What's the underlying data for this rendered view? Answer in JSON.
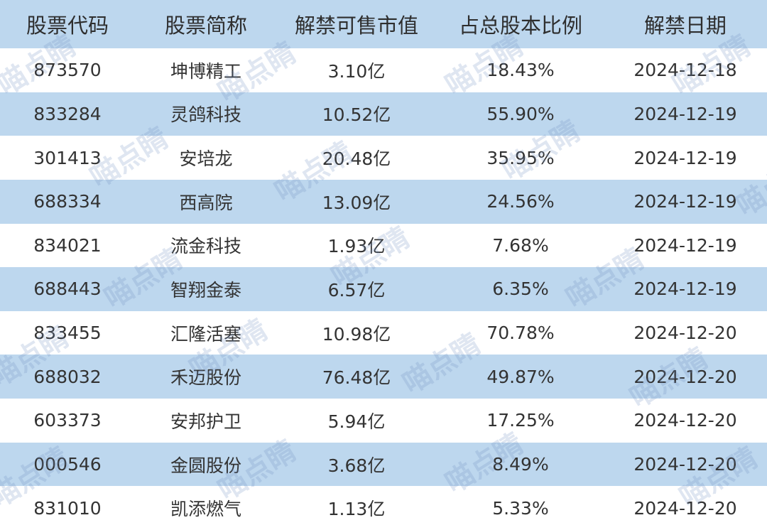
{
  "table": {
    "header": [
      "股票代码",
      "股票简称",
      "解禁可售市值",
      "占总股本比例",
      "解禁日期"
    ],
    "rows": [
      [
        "873570",
        "坤博精工",
        "3.10亿",
        "18.43%",
        "2024-12-18"
      ],
      [
        "833284",
        "灵鸽科技",
        "10.52亿",
        "55.90%",
        "2024-12-19"
      ],
      [
        "301413",
        "安培龙",
        "20.48亿",
        "35.95%",
        "2024-12-19"
      ],
      [
        "688334",
        "西高院",
        "13.09亿",
        "24.56%",
        "2024-12-19"
      ],
      [
        "834021",
        "流金科技",
        "1.93亿",
        "7.68%",
        "2024-12-19"
      ],
      [
        "688443",
        "智翔金泰",
        "6.57亿",
        "6.35%",
        "2024-12-19"
      ],
      [
        "833455",
        "汇隆活塞",
        "10.98亿",
        "70.78%",
        "2024-12-20"
      ],
      [
        "688032",
        "禾迈股份",
        "76.48亿",
        "49.87%",
        "2024-12-20"
      ],
      [
        "603373",
        "安邦护卫",
        "5.94亿",
        "17.25%",
        "2024-12-20"
      ],
      [
        "000546",
        "金圆股份",
        "3.68亿",
        "8.49%",
        "2024-12-20"
      ],
      [
        "831010",
        "凯添燃气",
        "1.13亿",
        "5.33%",
        "2024-12-20"
      ]
    ]
  },
  "watermark": "喵点睛"
}
